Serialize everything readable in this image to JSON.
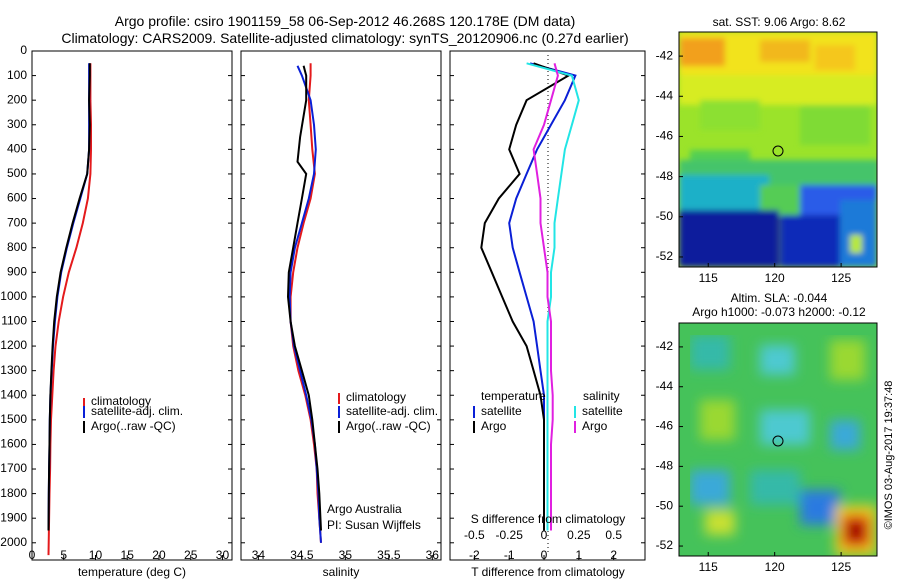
{
  "header": {
    "line1": "Argo profile: csiro 1901159_58 06-Sep-2012 46.268S 120.178E (DM data)",
    "line2": "Climatology: CARS2009. Satellite-adjusted climatology: synTS_20120906.nc (0.27d earlier)"
  },
  "credit": "©IMOS 03-Aug-2017 19:37:48",
  "colors": {
    "climatology": "#e41a1c",
    "satellite": "#0a1fd6",
    "argo": "#000000",
    "sat_salinity": "#22e5e5",
    "argo_salinity": "#e020e0"
  },
  "chart_data": [
    {
      "type": "line",
      "xlabel": "temperature (deg C)",
      "ylabel": "",
      "xlim": [
        0,
        31.5
      ],
      "ylim": [
        2070,
        0
      ],
      "xticks": [
        0,
        5,
        10,
        15,
        20,
        25,
        30
      ],
      "yticks": [
        0,
        100,
        200,
        300,
        400,
        500,
        600,
        700,
        800,
        900,
        1000,
        1100,
        1200,
        1300,
        1400,
        1500,
        1600,
        1700,
        1800,
        1900,
        2000
      ],
      "legend": [
        "climatology",
        "satellite-adj. clim.",
        "Argo(..raw -QC)"
      ],
      "legend_position": "lower-right",
      "series": [
        {
          "name": "climatology",
          "color": "#e41a1c",
          "x": [
            9.2,
            9.2,
            9.2,
            9.3,
            9.3,
            9.2,
            8.8,
            8.0,
            7.0,
            5.8,
            4.9,
            4.2,
            3.7,
            3.4,
            3.2,
            3.0,
            2.9,
            2.85,
            2.75,
            2.7,
            2.6
          ],
          "y": [
            50,
            100,
            200,
            300,
            400,
            500,
            600,
            700,
            800,
            900,
            1000,
            1100,
            1200,
            1300,
            1400,
            1500,
            1600,
            1700,
            1800,
            1900,
            2050
          ]
        },
        {
          "name": "satellite-adj. clim.",
          "color": "#0a1fd6",
          "x": [
            9.0,
            9.0,
            9.0,
            9.0,
            9.0,
            8.7,
            7.6,
            6.5,
            5.5,
            4.6,
            4.0,
            3.6,
            3.3,
            3.1,
            2.9,
            2.8,
            2.75,
            2.7,
            2.65,
            2.6
          ],
          "y": [
            50,
            100,
            200,
            300,
            400,
            500,
            600,
            700,
            800,
            900,
            1000,
            1100,
            1200,
            1300,
            1400,
            1500,
            1600,
            1700,
            1800,
            1950
          ]
        },
        {
          "name": "Argo(..raw -QC)",
          "color": "#000000",
          "x": [
            9.1,
            9.1,
            9.0,
            9.1,
            9.0,
            8.7,
            7.5,
            6.4,
            5.4,
            4.5,
            3.9,
            3.5,
            3.25,
            3.05,
            2.9,
            2.8,
            2.75,
            2.7,
            2.65,
            2.6
          ],
          "y": [
            50,
            100,
            200,
            300,
            400,
            500,
            600,
            700,
            800,
            900,
            1000,
            1100,
            1200,
            1300,
            1400,
            1500,
            1600,
            1700,
            1800,
            1950
          ]
        }
      ]
    },
    {
      "type": "line",
      "xlabel": "salinity",
      "ylabel": "",
      "xlim": [
        33.8,
        36.1
      ],
      "ylim": [
        2070,
        0
      ],
      "xticks": [
        34,
        34.5,
        35,
        35.5,
        36
      ],
      "legend": [
        "climatology",
        "satellite-adj. clim.",
        "Argo(..raw -QC)"
      ],
      "legend_position": "lower-right",
      "annotations": [
        "Argo Australia",
        "PI: Susan Wijffels"
      ],
      "series": [
        {
          "name": "climatology",
          "color": "#e41a1c",
          "x": [
            34.6,
            34.6,
            34.58,
            34.6,
            34.62,
            34.65,
            34.6,
            34.52,
            34.45,
            34.4,
            34.37,
            34.37,
            34.4,
            34.46,
            34.54,
            34.6,
            34.64,
            34.67,
            34.68,
            34.7,
            34.72
          ],
          "y": [
            50,
            100,
            200,
            300,
            400,
            500,
            600,
            700,
            800,
            900,
            1000,
            1100,
            1200,
            1300,
            1400,
            1500,
            1600,
            1700,
            1800,
            1900,
            2000
          ]
        },
        {
          "name": "satellite-adj. clim.",
          "color": "#0a1fd6",
          "x": [
            34.45,
            34.5,
            34.6,
            34.64,
            34.66,
            34.64,
            34.58,
            34.5,
            34.42,
            34.37,
            34.36,
            34.37,
            34.41,
            34.48,
            34.55,
            34.61,
            34.65,
            34.67,
            34.69,
            34.7,
            34.72
          ],
          "y": [
            60,
            100,
            200,
            300,
            400,
            500,
            600,
            700,
            800,
            900,
            1000,
            1100,
            1200,
            1300,
            1400,
            1500,
            1600,
            1700,
            1800,
            1900,
            2000
          ]
        },
        {
          "name": "Argo(..raw -QC)",
          "color": "#000000",
          "x": [
            34.52,
            34.55,
            34.55,
            34.48,
            34.45,
            34.55,
            34.5,
            34.45,
            34.4,
            34.35,
            34.34,
            34.37,
            34.42,
            34.5,
            34.58,
            34.62,
            34.65,
            34.68,
            34.7,
            34.72
          ],
          "y": [
            60,
            100,
            200,
            350,
            450,
            500,
            600,
            700,
            800,
            900,
            1000,
            1100,
            1200,
            1300,
            1400,
            1500,
            1600,
            1700,
            1800,
            1950
          ]
        }
      ]
    },
    {
      "type": "line",
      "xlabel": "T difference from climatology",
      "title_bottom": "S difference from climatology",
      "xlim": [
        -2.7,
        2.9
      ],
      "ylim": [
        2070,
        0
      ],
      "xticks": [
        -2,
        -1,
        0,
        1,
        2
      ],
      "top_ticks": [
        -0.5,
        -0.25,
        0,
        0.25,
        0.5
      ],
      "legend_left_title": "temperature",
      "legend_right_title": "salinity",
      "legend": [
        "satellite",
        "Argo",
        "satellite",
        "Argo"
      ],
      "legend_position": "lower-center",
      "series": [
        {
          "name": "satellite",
          "group": "temperature",
          "color": "#0a1fd6",
          "x": [
            -0.4,
            0.9,
            0.6,
            0.2,
            -0.2,
            -0.5,
            -0.8,
            -1.0,
            -0.9,
            -0.7,
            -0.5,
            -0.3,
            -0.2,
            -0.1,
            0,
            0,
            0,
            0,
            0,
            0
          ],
          "y": [
            50,
            100,
            200,
            300,
            400,
            500,
            600,
            700,
            800,
            900,
            1000,
            1100,
            1200,
            1300,
            1400,
            1500,
            1600,
            1700,
            1800,
            1950
          ]
        },
        {
          "name": "Argo",
          "group": "temperature",
          "color": "#000000",
          "x": [
            -0.3,
            0.7,
            -0.5,
            -0.8,
            -1.0,
            -0.7,
            -1.3,
            -1.7,
            -1.8,
            -1.5,
            -1.2,
            -0.9,
            -0.5,
            -0.3,
            -0.1,
            0,
            0,
            0,
            0,
            0
          ],
          "y": [
            50,
            100,
            200,
            300,
            400,
            500,
            600,
            700,
            800,
            900,
            1000,
            1100,
            1200,
            1300,
            1400,
            1500,
            1600,
            1700,
            1800,
            1950
          ]
        },
        {
          "name": "satellite",
          "group": "salinity",
          "color": "#22e5e5",
          "x": [
            -0.5,
            0.8,
            1.0,
            0.8,
            0.6,
            0.5,
            0.4,
            0.3,
            0.3,
            0.2,
            0.2,
            0.1,
            0.1,
            0.1,
            0.1,
            0.1,
            0.1,
            0.1,
            0.1,
            0.1
          ],
          "y": [
            50,
            100,
            200,
            300,
            400,
            500,
            600,
            700,
            800,
            900,
            1000,
            1100,
            1200,
            1300,
            1400,
            1500,
            1600,
            1700,
            1800,
            1950
          ]
        },
        {
          "name": "Argo",
          "group": "salinity",
          "color": "#e020e0",
          "x": [
            0.3,
            0.4,
            0.2,
            0.0,
            -0.3,
            -0.2,
            -0.1,
            -0.1,
            0.0,
            0.1,
            0.1,
            0.2,
            0.2,
            0.2,
            0.25,
            0.25,
            0.2,
            0.2,
            0.2,
            0.2
          ],
          "y": [
            50,
            100,
            200,
            300,
            400,
            500,
            600,
            700,
            800,
            900,
            1000,
            1100,
            1200,
            1300,
            1400,
            1500,
            1600,
            1700,
            1800,
            1950
          ]
        }
      ]
    },
    {
      "type": "heatmap",
      "title": "sat. SST: 9.06 Argo: 8.62",
      "xticks": [
        115,
        120,
        125
      ],
      "yticks": [
        -42,
        -44,
        -46,
        -48,
        -50,
        -52
      ],
      "xlim": [
        112.8,
        127.7
      ],
      "ylim": [
        -52.5,
        -40.8
      ],
      "marker": {
        "lon": 120.178,
        "lat": -46.268
      }
    },
    {
      "type": "heatmap",
      "title": "Altim. SLA: -0.044",
      "subtitle": "Argo h1000: -0.073 h2000: -0.12",
      "xticks": [
        115,
        120,
        125
      ],
      "yticks": [
        -42,
        -44,
        -46,
        -48,
        -50,
        -52
      ],
      "xlim": [
        112.8,
        127.7
      ],
      "ylim": [
        -52.5,
        -40.8
      ],
      "marker": {
        "lon": 120.178,
        "lat": -46.268
      }
    }
  ]
}
